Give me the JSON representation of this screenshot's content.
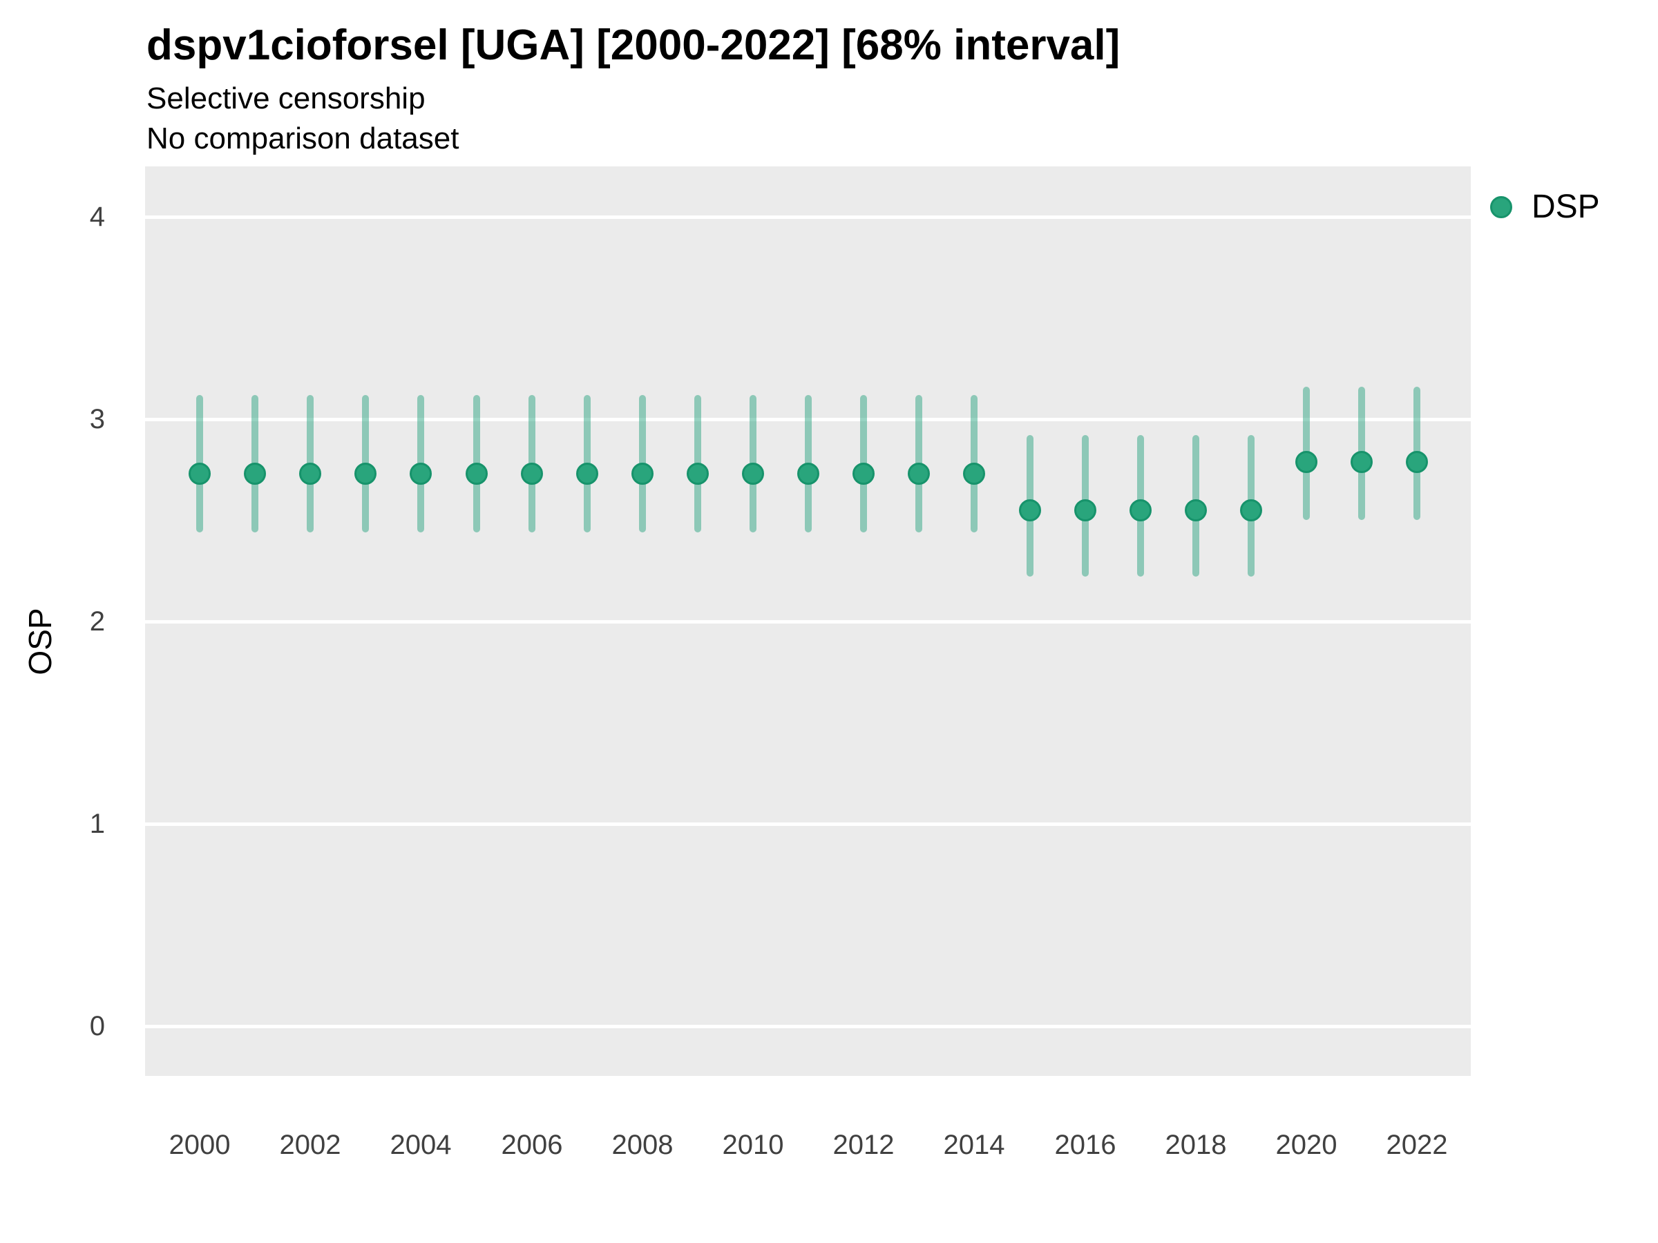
{
  "header": {
    "title": "dspv1cioforsel [UGA] [2000-2022] [68% interval]",
    "subtitle_line1": "Selective censorship",
    "subtitle_line2": "No comparison dataset"
  },
  "axes": {
    "y_title": "OSP",
    "y_ticks": [
      4,
      3,
      2,
      1,
      0
    ],
    "x_ticks": [
      2000,
      2002,
      2004,
      2006,
      2008,
      2010,
      2012,
      2014,
      2016,
      2018,
      2020,
      2022
    ]
  },
  "legend": {
    "position": "right",
    "items": [
      {
        "label": "DSP",
        "color": "#29A57C"
      }
    ]
  },
  "colors": {
    "panel_bg": "#EBEBEB",
    "gridline": "#FFFFFF",
    "point_fill": "#29A57C",
    "point_stroke": "#17936B",
    "interval_bar": "rgba(27,158,119,0.45)",
    "tick_text": "#404040"
  },
  "chart_data": {
    "type": "scatter",
    "subtype": "pointrange",
    "title": "dspv1cioforsel [UGA] [2000-2022] [68% interval]",
    "subtitle": [
      "Selective censorship",
      "No comparison dataset"
    ],
    "xlabel": "",
    "ylabel": "OSP",
    "interval_level": "68%",
    "grid": "horizontal-major-only",
    "legend_position": "right",
    "ylim": [
      -0.25,
      4.25
    ],
    "x": [
      2000,
      2001,
      2002,
      2003,
      2004,
      2005,
      2006,
      2007,
      2008,
      2009,
      2010,
      2011,
      2012,
      2013,
      2014,
      2015,
      2016,
      2017,
      2018,
      2019,
      2020,
      2021,
      2022
    ],
    "series": [
      {
        "name": "DSP",
        "y": [
          2.73,
          2.73,
          2.73,
          2.73,
          2.73,
          2.73,
          2.73,
          2.73,
          2.73,
          2.73,
          2.73,
          2.73,
          2.73,
          2.73,
          2.73,
          2.55,
          2.55,
          2.55,
          2.55,
          2.55,
          2.79,
          2.79,
          2.79
        ],
        "lower": [
          2.44,
          2.44,
          2.44,
          2.44,
          2.44,
          2.44,
          2.44,
          2.44,
          2.44,
          2.44,
          2.44,
          2.44,
          2.44,
          2.44,
          2.44,
          2.22,
          2.22,
          2.22,
          2.22,
          2.22,
          2.5,
          2.5,
          2.5
        ],
        "upper": [
          3.12,
          3.12,
          3.12,
          3.12,
          3.12,
          3.12,
          3.12,
          3.12,
          3.12,
          3.12,
          3.12,
          3.12,
          3.12,
          3.12,
          3.12,
          2.92,
          2.92,
          2.92,
          2.92,
          2.92,
          3.16,
          3.16,
          3.16
        ]
      }
    ]
  }
}
